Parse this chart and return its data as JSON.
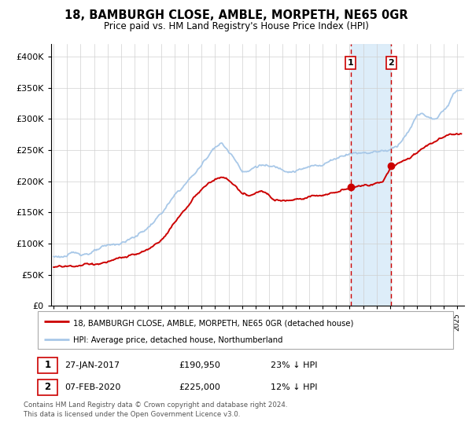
{
  "title": "18, BAMBURGH CLOSE, AMBLE, MORPETH, NE65 0GR",
  "subtitle": "Price paid vs. HM Land Registry's House Price Index (HPI)",
  "legend_line1": "18, BAMBURGH CLOSE, AMBLE, MORPETH, NE65 0GR (detached house)",
  "legend_line2": "HPI: Average price, detached house, Northumberland",
  "marker1_date": "27-JAN-2017",
  "marker1_price": "£190,950",
  "marker1_hpi": "23% ↓ HPI",
  "marker1_x": 2017.07,
  "marker1_y": 190950,
  "marker2_date": "07-FEB-2020",
  "marker2_price": "£225,000",
  "marker2_hpi": "12% ↓ HPI",
  "marker2_x": 2020.1,
  "marker2_y": 225000,
  "hpi_color": "#a8c8e8",
  "price_color": "#cc0000",
  "marker_color": "#cc0000",
  "shade_color": "#d8eaf8",
  "footer": "Contains HM Land Registry data © Crown copyright and database right 2024.\nThis data is licensed under the Open Government Licence v3.0.",
  "ylim": [
    0,
    420000
  ],
  "xlim": [
    1994.8,
    2025.5
  ],
  "yticks": [
    0,
    50000,
    100000,
    150000,
    200000,
    250000,
    300000,
    350000,
    400000
  ],
  "ytick_labels": [
    "£0",
    "£50K",
    "£100K",
    "£150K",
    "£200K",
    "£250K",
    "£300K",
    "£350K",
    "£400K"
  ],
  "bg_color": "#ffffff"
}
